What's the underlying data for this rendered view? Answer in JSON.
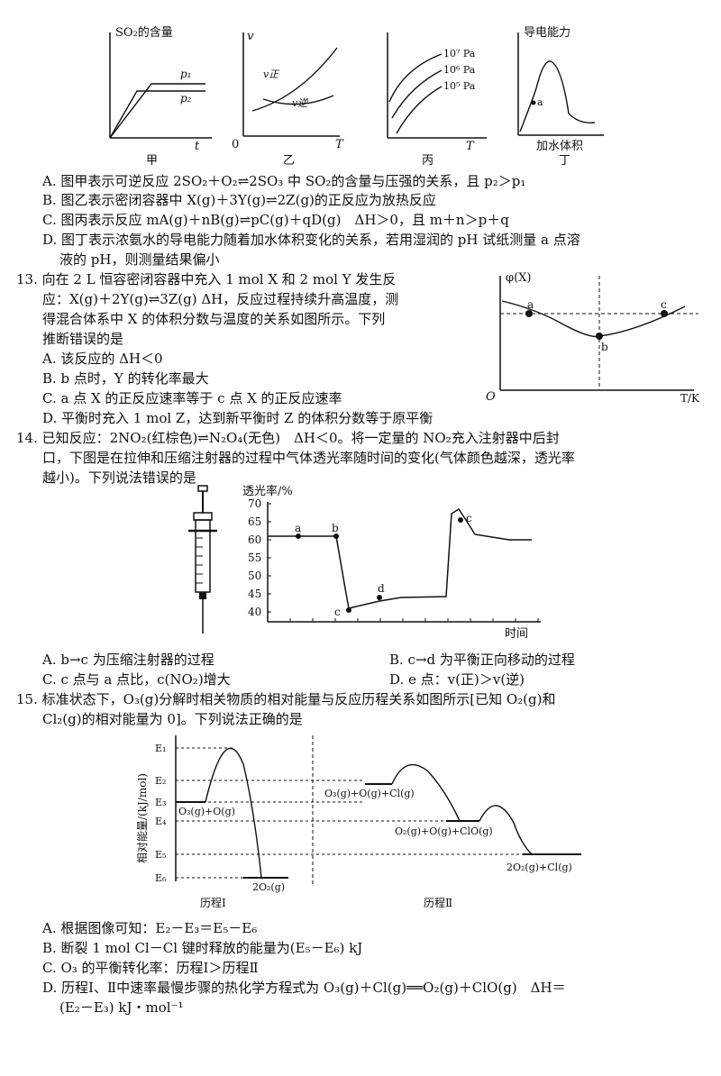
{
  "top_graphs": {
    "jia": {
      "ylabel": "SO₂的含量",
      "p1": "p₁",
      "p2": "p₂",
      "xlabel": "t",
      "caption": "甲"
    },
    "yi": {
      "ylabel": "v",
      "v_zheng": "v正",
      "v_ni": "v逆",
      "xlabel": "T",
      "origin": "0",
      "caption": "乙"
    },
    "bing": {
      "curves": [
        "10⁷ Pa",
        "10⁶ Pa",
        "10⁵ Pa"
      ],
      "xlabel": "T",
      "caption": "丙"
    },
    "ding": {
      "ylabel": "导电能力",
      "point": "a",
      "xlabel": "加水体积",
      "caption": "丁"
    }
  },
  "q12_options": {
    "A": "A. 图甲表示可逆反应 2SO₂＋O₂⇌2SO₃ 中 SO₂的含量与压强的关系，且 p₂＞p₁",
    "B": "B. 图乙表示密闭容器中 X(g)＋3Y(g)⇌2Z(g)的正反应为放热反应",
    "C": "C. 图丙表示反应 mA(g)＋nB(g)⇌pC(g)＋qD(g)　ΔH＞0，且 m＋n＞p＋q",
    "D1": "D. 图丁表示浓氨水的导电能力随着加水体积变化的关系，若用湿润的 pH 试纸测量 a 点溶",
    "D2": "液的 pH，则测量结果偏小"
  },
  "q13": {
    "stem1": "13. 向在 2 L 恒容密闭容器中充入 1 mol X 和 2 mol Y 发生反",
    "stem2": "应：X(g)＋2Y(g)⇌3Z(g) ΔH，反应过程持续升高温度，测",
    "stem3": "得混合体系中 X 的体积分数与温度的关系如图所示。下列",
    "stem4": "推断错误的是",
    "A": "A. 该反应的 ΔH＜0",
    "B": "B. b 点时，Y 的转化率最大",
    "C": "C. a 点 X 的正反应速率等于 c 点 X 的正反应速率",
    "D": "D. 平衡时充入 1 mol Z，达到新平衡时 Z 的体积分数等于原平衡",
    "graph": {
      "ylabel": "φ(X)",
      "xlabel": "T/K",
      "origin": "O",
      "a": "a",
      "b": "b",
      "c": "c"
    }
  },
  "q14": {
    "stem1": "14. 已知反应：2NO₂(红棕色)⇌N₂O₄(无色)　ΔH＜0。将一定量的 NO₂充入注射器中后封",
    "stem2": "口，下图是在拉伸和压缩注射器的过程中气体透光率随时间的变化(气体颜色越深，透光率",
    "stem3": "越小)。下列说法错误的是",
    "graph": {
      "ylabel": "透光率/%",
      "xlabel": "时间",
      "yticks": [
        "70",
        "65",
        "60",
        "55",
        "50",
        "45",
        "40"
      ],
      "points": {
        "a": "a",
        "b": "b",
        "c1": "c",
        "d": "d",
        "c2": "c"
      }
    },
    "A": "A. b→c 为压缩注射器的过程",
    "B": "B. c→d 为平衡正向移动的过程",
    "C": "C. c 点与 a 点比，c(NO₂)增大",
    "D": "D. e 点：v(正)＞v(逆)"
  },
  "q15": {
    "stem1": "15. 标准状态下，O₃(g)分解时相关物质的相对能量与反应历程关系如图所示[已知 O₂(g)和",
    "stem2": "Cl₂(g)的相对能量为 0]。下列说法正确的是",
    "graph": {
      "ylabel": "相对能量/(kJ/mol)",
      "levels": [
        "E₁",
        "E₂",
        "E₃",
        "E₄",
        "E₅",
        "E₆"
      ],
      "species1": "O₃(g)+O(g)",
      "species2": "2O₂(g)",
      "species3": "O₃(g)+O(g)+Cl(g)",
      "species4": "O₂(g)+O(g)+ClO(g)",
      "species5": "2O₂(g)+Cl(g)",
      "path1": "历程Ⅰ",
      "path2": "历程Ⅱ"
    },
    "A": "A. 根据图像可知：E₂－E₃＝E₅－E₆",
    "B": "B. 断裂 1 mol Cl－Cl 键时释放的能量为(E₅－E₆) kJ",
    "C": "C. O₃ 的平衡转化率：历程Ⅰ＞历程Ⅱ",
    "D1": "D. 历程Ⅰ、Ⅱ中速率最慢步骤的热化学方程式为 O₃(g)＋Cl(g)══O₂(g)＋ClO(g)　ΔH＝",
    "D2": "(E₂－E₃) kJ・mol⁻¹"
  }
}
